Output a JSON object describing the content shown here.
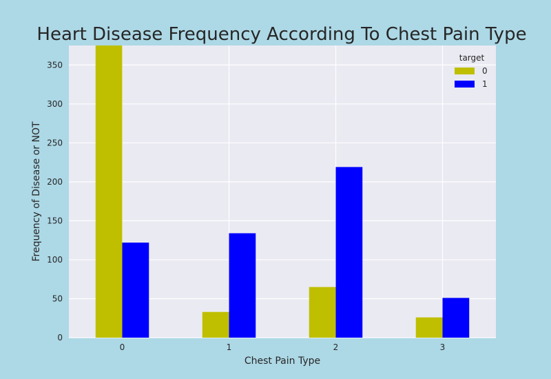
{
  "chart_data": {
    "type": "bar",
    "title": "Heart Disease Frequency According To Chest Pain Type",
    "xlabel": "Chest Pain Type",
    "ylabel": "Frequency of Disease or NOT",
    "categories": [
      "0",
      "1",
      "2",
      "3"
    ],
    "series": [
      {
        "name": "0",
        "values": [
          375,
          33,
          65,
          26
        ],
        "color": "#bfbf00"
      },
      {
        "name": "1",
        "values": [
          122,
          134,
          219,
          51
        ],
        "color": "#0000ff"
      }
    ],
    "ylim": [
      0,
      375
    ],
    "yticks": [
      0,
      50,
      100,
      150,
      200,
      250,
      300,
      350
    ],
    "grid": true,
    "legend": {
      "title": "target",
      "position": "top-right"
    },
    "colors": {
      "page_background": "#add8e6",
      "plot_background": "#eaeaf2",
      "grid": "#ffffff"
    }
  }
}
